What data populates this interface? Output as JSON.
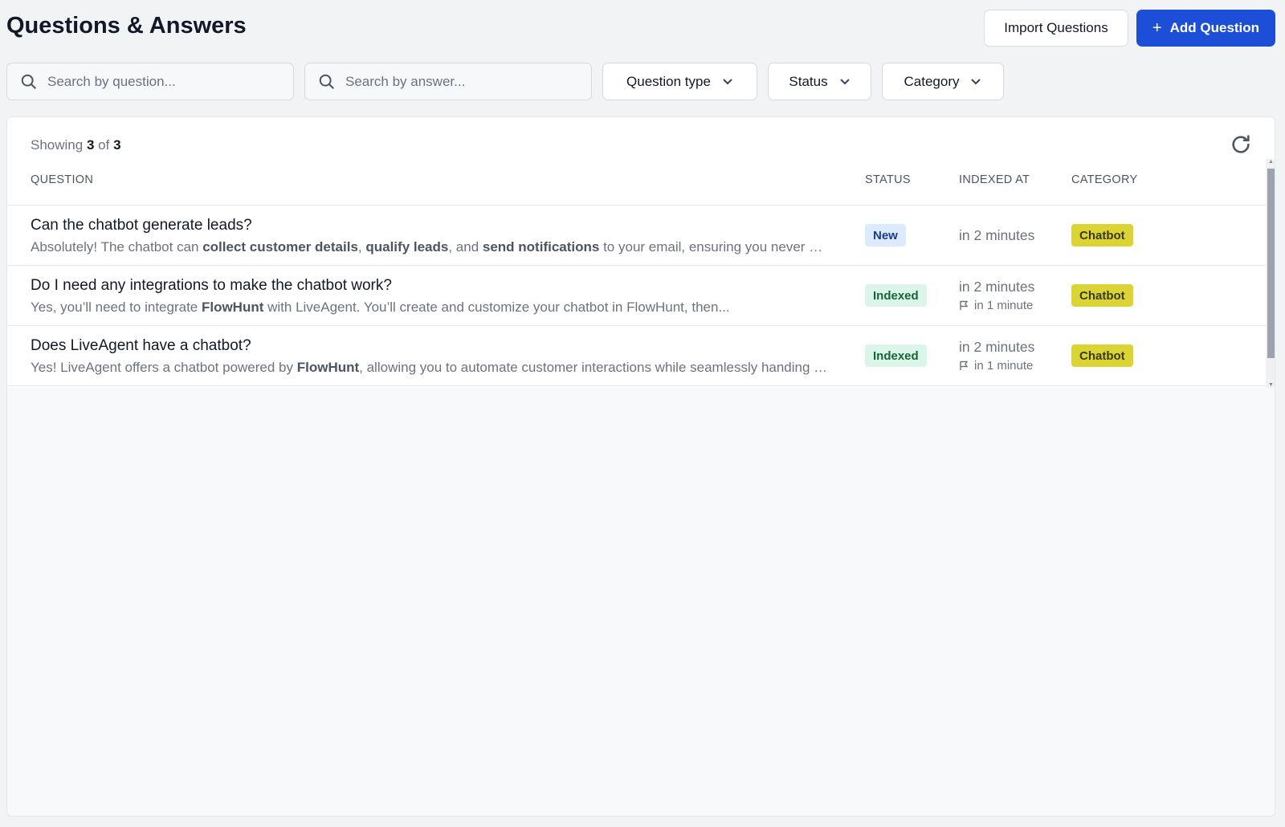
{
  "header": {
    "title": "Questions & Answers",
    "import_label": "Import Questions",
    "add_label": "Add Question"
  },
  "filters": {
    "question_placeholder": "Search by question...",
    "answer_placeholder": "Search by answer...",
    "question_type": "Question type",
    "status": "Status",
    "category": "Category"
  },
  "list": {
    "showing_prefix": "Showing",
    "shown": "3",
    "of": "of",
    "total": "3",
    "columns": {
      "question": "QUESTION",
      "status": "STATUS",
      "indexed_at": "INDEXED AT",
      "category": "CATEGORY"
    },
    "rows": [
      {
        "question": "Can the chatbot generate leads?",
        "answer": [
          {
            "t": "Absolutely! The chatbot can "
          },
          {
            "t": "collect customer details",
            "b": true
          },
          {
            "t": ", "
          },
          {
            "t": "qualify leads",
            "b": true
          },
          {
            "t": ", and "
          },
          {
            "t": "send notifications",
            "b": true
          },
          {
            "t": " to your email, ensuring you never miss a potential lead."
          }
        ],
        "status": "New",
        "indexed": "in 2 minutes",
        "sub": "",
        "category": "Chatbot"
      },
      {
        "question": "Do I need any integrations to make the chatbot work?",
        "answer": [
          {
            "t": "Yes, you’ll need to integrate "
          },
          {
            "t": "FlowHunt",
            "b": true
          },
          {
            "t": " with LiveAgent. You’ll create and customize your chatbot in FlowHunt, then..."
          }
        ],
        "status": "Indexed",
        "indexed": "in 2 minutes",
        "sub": "in 1 minute",
        "category": "Chatbot"
      },
      {
        "question": "Does LiveAgent have a chatbot?",
        "answer": [
          {
            "t": "Yes! LiveAgent offers a chatbot powered by "
          },
          {
            "t": "FlowHunt",
            "b": true
          },
          {
            "t": ", allowing you to automate customer interactions while seamlessly handing over to agents."
          }
        ],
        "status": "Indexed",
        "indexed": "in 2 minutes",
        "sub": "in 1 minute",
        "category": "Chatbot"
      }
    ]
  },
  "colors": {
    "primary": "#1d4ed8",
    "category_badge": "#dcd434",
    "status_new": "#dbeafe",
    "status_indexed": "#dcf5ea"
  }
}
